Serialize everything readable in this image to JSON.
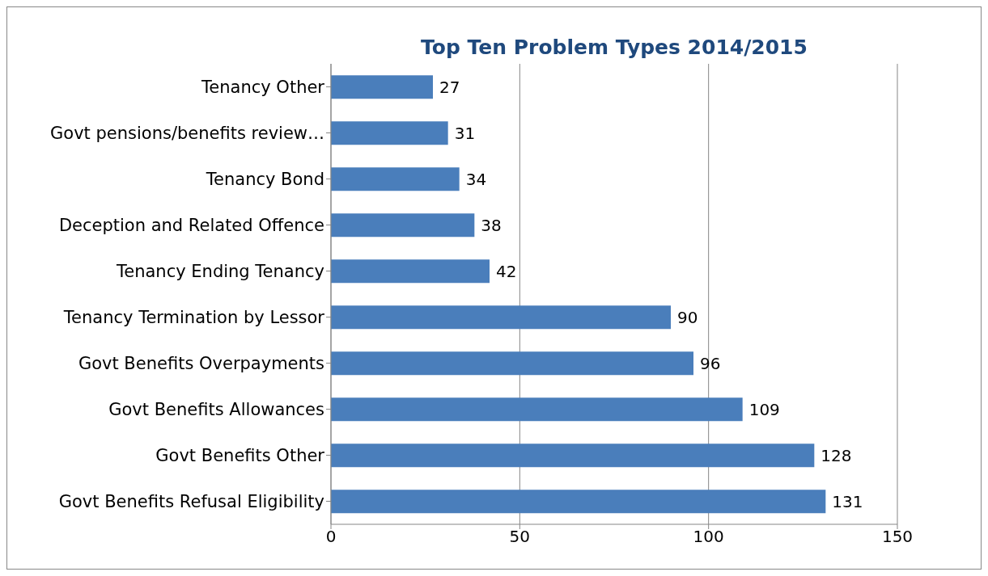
{
  "chart_data": {
    "type": "bar",
    "orientation": "horizontal",
    "title": "Top Ten Problem Types 2014/2015",
    "categories": [
      "Tenancy Other",
      "Govt pensions/benefits review…",
      "Tenancy Bond",
      "Deception and Related Offence",
      "Tenancy Ending Tenancy",
      "Tenancy Termination by Lessor",
      "Govt Benefits Overpayments",
      "Govt Benefits Allowances",
      "Govt Benefits Other",
      "Govt Benefits Refusal Eligibility"
    ],
    "values": [
      27,
      31,
      34,
      38,
      42,
      90,
      96,
      109,
      128,
      131
    ],
    "color": "#4a7ebb",
    "xlim": [
      0,
      150
    ],
    "xticks": [
      0,
      50,
      100,
      150
    ],
    "grid": "x",
    "data_labels": true,
    "legend": false
  }
}
